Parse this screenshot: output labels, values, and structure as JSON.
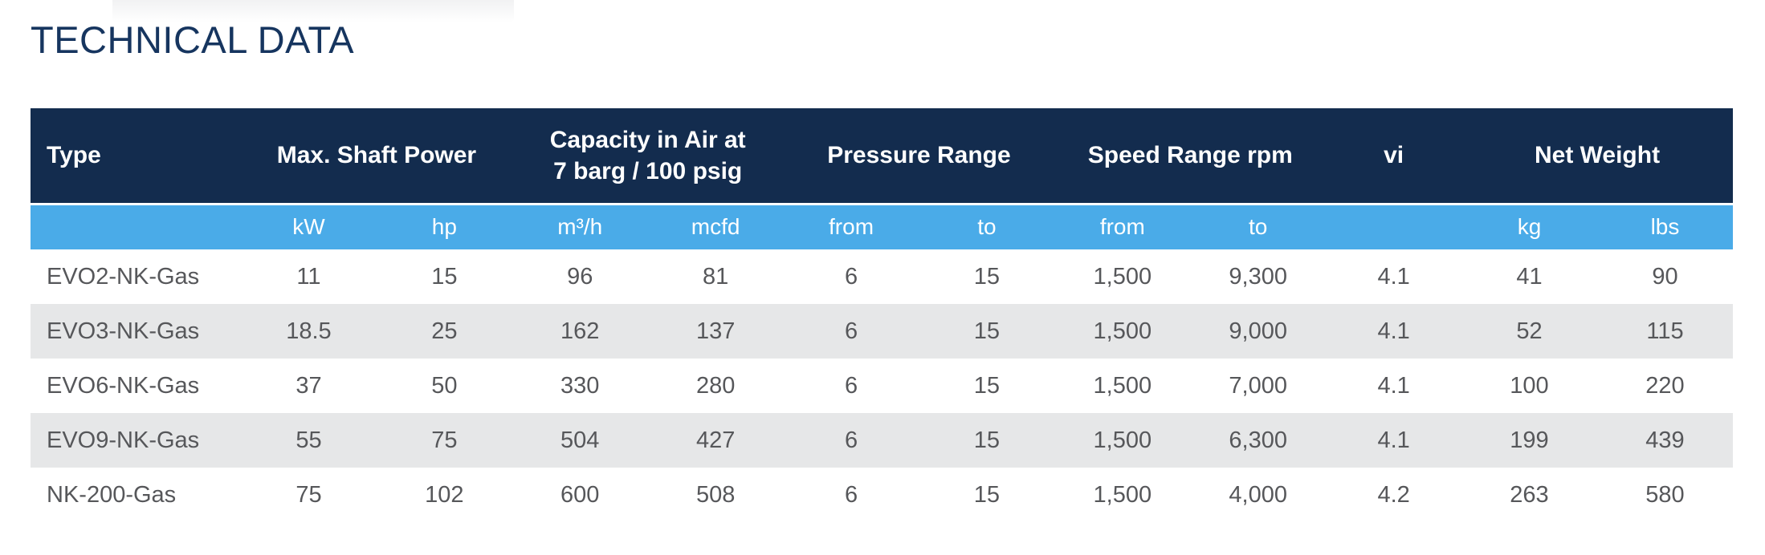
{
  "page": {
    "title": "TECHNICAL DATA"
  },
  "colors": {
    "header_bg": "#132c4e",
    "subheader_bg": "#4aabe8",
    "alt_row_bg": "#e6e7e8",
    "title_color": "#16355f",
    "body_text_color": "#56575a",
    "header_text_color": "#ffffff"
  },
  "table": {
    "groups": [
      {
        "label": "Type",
        "span": 1
      },
      {
        "label": "Max. Shaft Power",
        "span": 2
      },
      {
        "label": "Capacity in Air at\n7 barg / 100 psig",
        "span": 2
      },
      {
        "label": "Pressure Range",
        "span": 2
      },
      {
        "label": "Speed Range rpm",
        "span": 2
      },
      {
        "label": "vi",
        "span": 1
      },
      {
        "label": "Net Weight",
        "span": 2
      }
    ],
    "units": [
      "",
      "kW",
      "hp",
      "m³/h",
      "mcfd",
      "from",
      "to",
      "from",
      "to",
      "",
      "kg",
      "lbs"
    ],
    "rows": [
      [
        "EVO2-NK-Gas",
        "11",
        "15",
        "96",
        "81",
        "6",
        "15",
        "1,500",
        "9,300",
        "4.1",
        "41",
        "90"
      ],
      [
        "EVO3-NK-Gas",
        "18.5",
        "25",
        "162",
        "137",
        "6",
        "15",
        "1,500",
        "9,000",
        "4.1",
        "52",
        "115"
      ],
      [
        "EVO6-NK-Gas",
        "37",
        "50",
        "330",
        "280",
        "6",
        "15",
        "1,500",
        "7,000",
        "4.1",
        "100",
        "220"
      ],
      [
        "EVO9-NK-Gas",
        "55",
        "75",
        "504",
        "427",
        "6",
        "15",
        "1,500",
        "6,300",
        "4.1",
        "199",
        "439"
      ],
      [
        "NK-200-Gas",
        "75",
        "102",
        "600",
        "508",
        "6",
        "15",
        "1,500",
        "4,000",
        "4.2",
        "263",
        "580"
      ]
    ]
  }
}
